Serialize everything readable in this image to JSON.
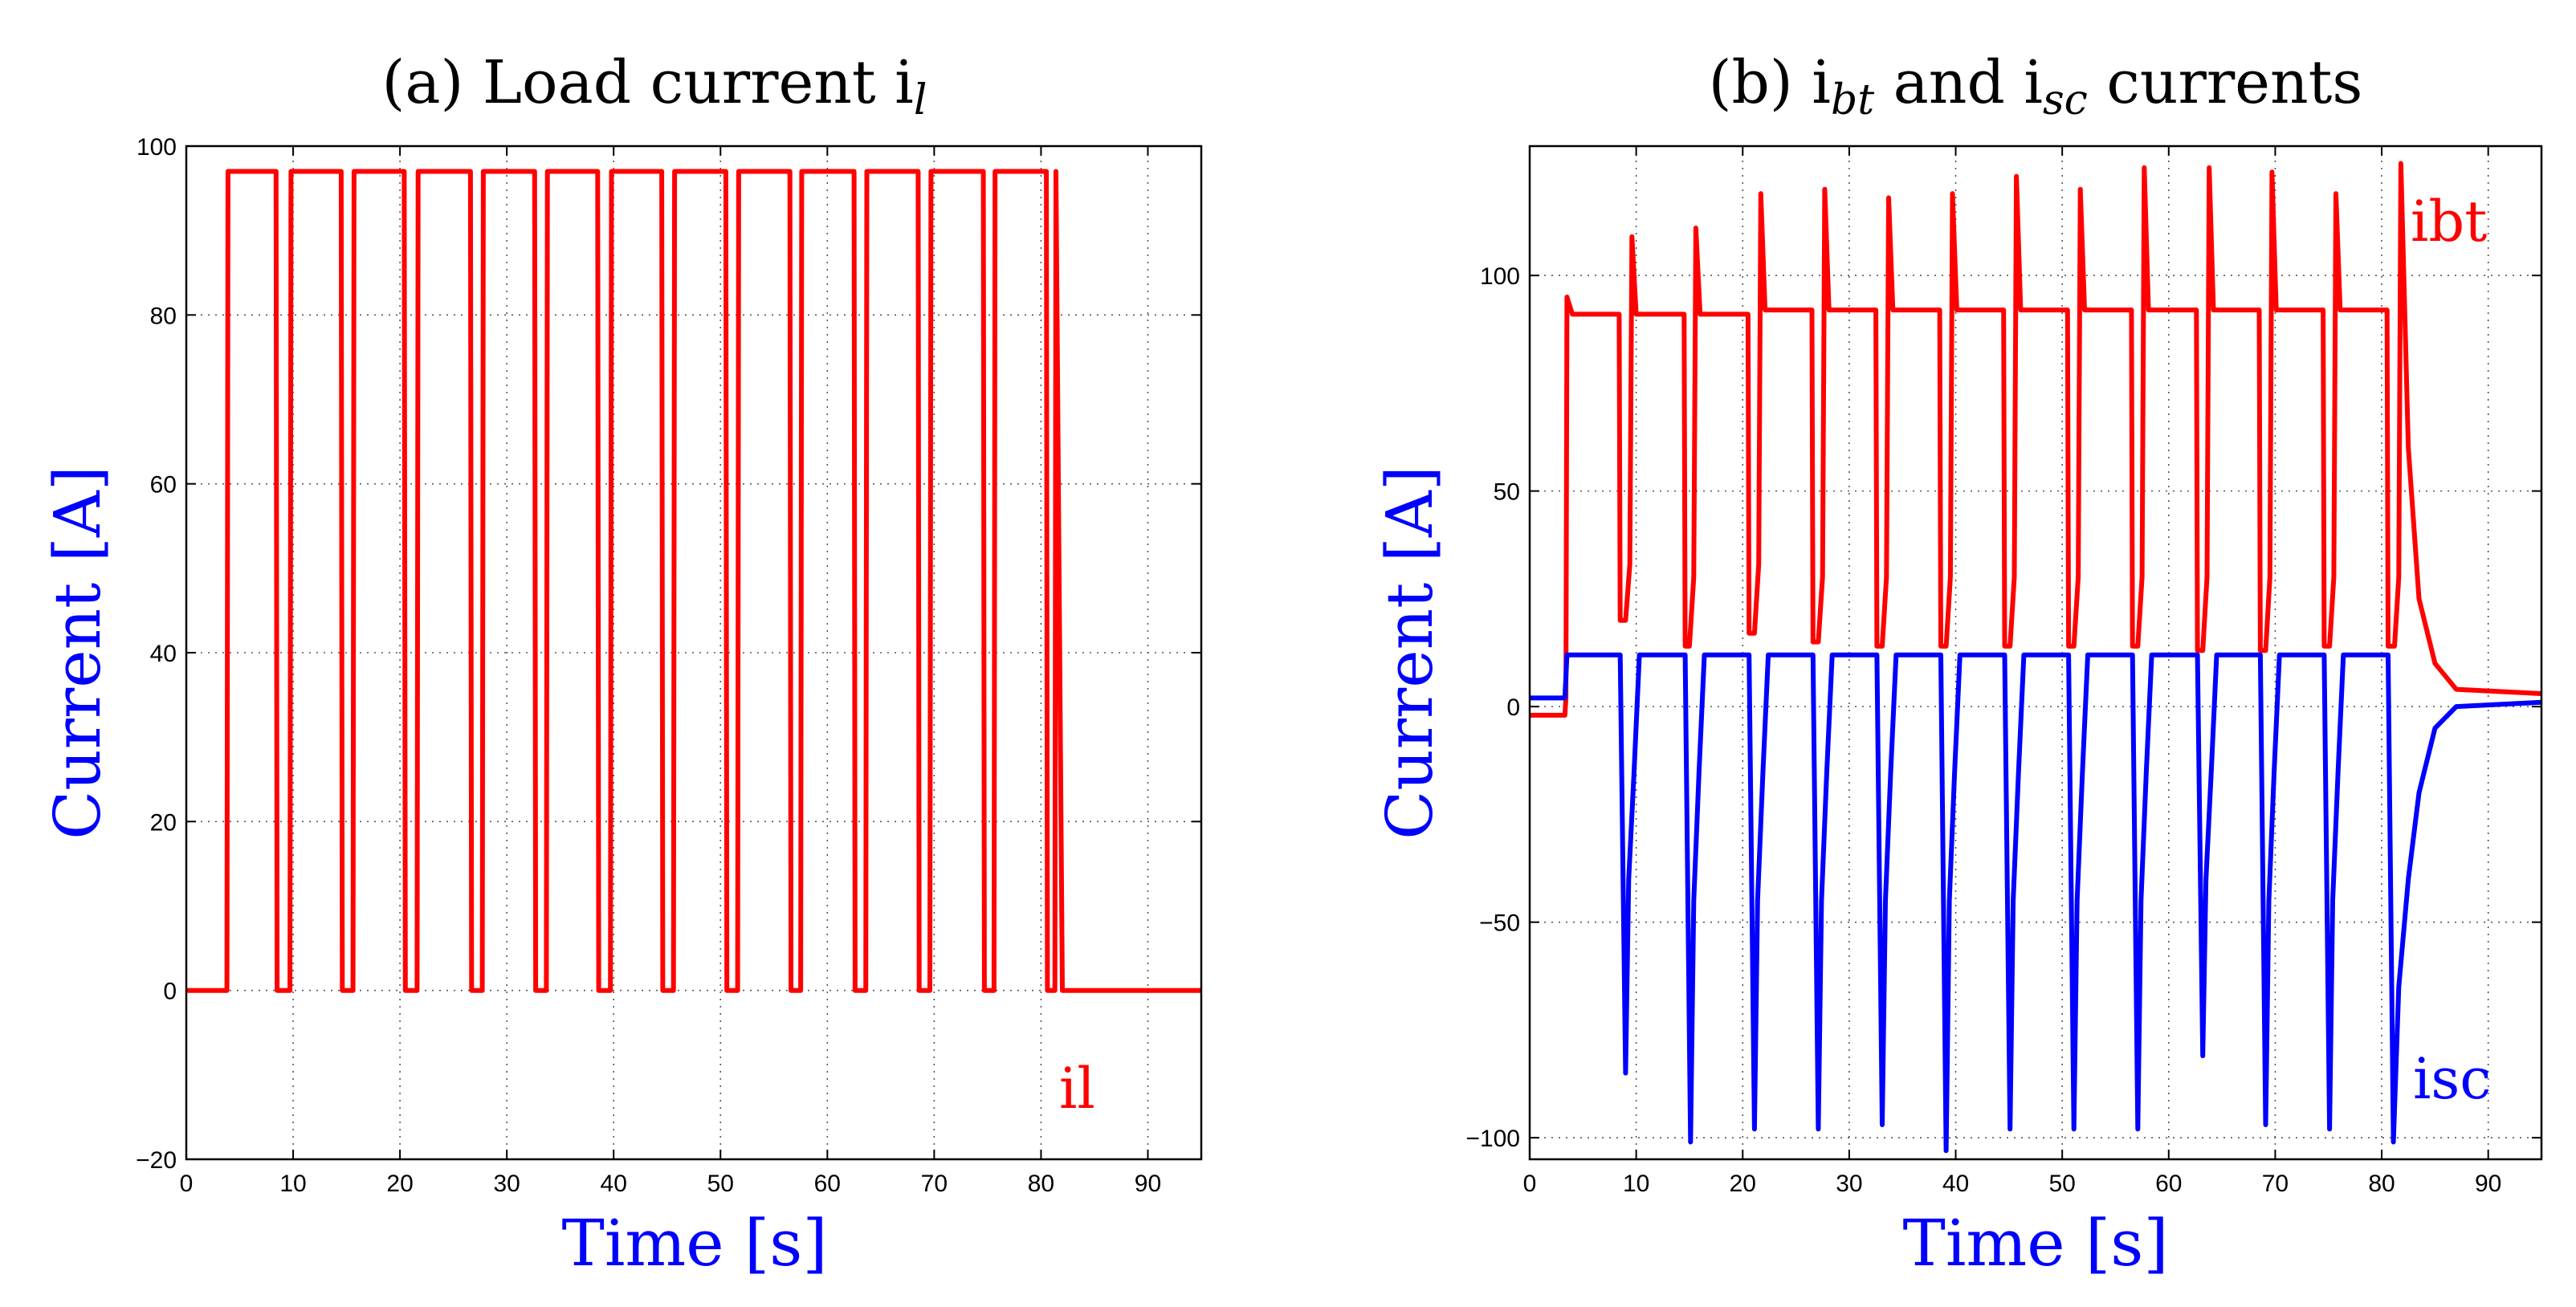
{
  "chart_data": [
    {
      "type": "line",
      "title": "(a) Load current i",
      "title_subscript": "l",
      "xlabel": "Time [s]",
      "ylabel": "Current [A]",
      "xlim": [
        0,
        95
      ],
      "ylim": [
        -20,
        100
      ],
      "xticks": [
        0,
        10,
        20,
        30,
        40,
        50,
        60,
        70,
        80,
        90
      ],
      "yticks": [
        -20,
        0,
        20,
        40,
        60,
        80,
        100
      ],
      "grid": true,
      "colors": {
        "il": "#ff0000",
        "label": "#0000ff"
      },
      "series": [
        {
          "name": "il",
          "color": "#ff0000",
          "x": [
            0,
            3.8,
            3.9,
            8.4,
            8.5,
            9.7,
            9.8,
            14.5,
            14.6,
            15.6,
            15.7,
            20.4,
            20.5,
            21.6,
            21.7,
            26.6,
            26.7,
            27.7,
            27.8,
            32.6,
            32.7,
            33.7,
            33.8,
            38.5,
            38.6,
            39.7,
            39.8,
            44.5,
            44.6,
            45.6,
            45.7,
            50.5,
            50.6,
            51.6,
            51.7,
            56.5,
            56.6,
            57.5,
            57.6,
            62.5,
            62.6,
            63.6,
            63.7,
            68.5,
            68.6,
            69.6,
            69.7,
            74.6,
            74.7,
            75.6,
            75.7,
            80.5,
            80.6,
            81.3,
            81.4,
            82.0,
            95
          ],
          "y": [
            0,
            0,
            97,
            97,
            0,
            0,
            97,
            97,
            0,
            0,
            97,
            97,
            0,
            0,
            97,
            97,
            0,
            0,
            97,
            97,
            0,
            0,
            97,
            97,
            0,
            0,
            97,
            97,
            0,
            0,
            97,
            97,
            0,
            0,
            97,
            97,
            0,
            0,
            97,
            97,
            0,
            0,
            97,
            97,
            0,
            0,
            97,
            97,
            0,
            0,
            97,
            97,
            0,
            0,
            97,
            0,
            0
          ]
        }
      ],
      "annotations": [
        {
          "text": "il",
          "x": 86,
          "y": -12,
          "color": "#ff0000"
        }
      ]
    },
    {
      "type": "line",
      "title": "(b) i",
      "title_sub1": "bt",
      "title_mid": " and i",
      "title_sub2": "sc",
      "title_tail": " currents",
      "xlabel": "Time [s]",
      "ylabel": "Current [A]",
      "xlim": [
        0,
        95
      ],
      "ylim": [
        -105,
        130
      ],
      "xticks": [
        0,
        10,
        20,
        30,
        40,
        50,
        60,
        70,
        80,
        90
      ],
      "yticks": [
        -100,
        -50,
        0,
        50,
        100
      ],
      "grid": true,
      "colors": {
        "ibt": "#ff0000",
        "isc": "#0000ff",
        "label": "#0000ff"
      },
      "series": [
        {
          "name": "ibt",
          "color": "#ff0000",
          "x": [
            0,
            3.3,
            3.4,
            3.5,
            4.0,
            8.4,
            8.5,
            9.0,
            9.4,
            9.6,
            10.0,
            14.5,
            14.6,
            15.0,
            15.4,
            15.6,
            16.0,
            20.5,
            20.6,
            21.1,
            21.5,
            21.7,
            22.1,
            26.5,
            26.6,
            27.1,
            27.5,
            27.7,
            28.1,
            32.5,
            32.6,
            33.1,
            33.5,
            33.7,
            34.1,
            38.5,
            38.6,
            39.1,
            39.5,
            39.7,
            40.1,
            44.5,
            44.6,
            45.1,
            45.5,
            45.7,
            46.1,
            50.5,
            50.6,
            51.1,
            51.5,
            51.7,
            52.1,
            56.5,
            56.6,
            57.1,
            57.5,
            57.7,
            58.1,
            62.6,
            62.7,
            63.2,
            63.6,
            63.8,
            64.2,
            68.5,
            68.6,
            69.1,
            69.5,
            69.7,
            70.1,
            74.5,
            74.6,
            75.1,
            75.5,
            75.7,
            76.1,
            80.5,
            80.6,
            81.2,
            81.6,
            81.8,
            82.5,
            83.5,
            85,
            87,
            95
          ],
          "y": [
            -2,
            -2,
            2,
            95,
            91,
            91,
            20,
            20,
            33,
            109,
            91,
            91,
            14,
            14,
            30,
            111,
            91,
            91,
            17,
            17,
            33,
            119,
            92,
            92,
            15,
            15,
            30,
            120,
            92,
            92,
            14,
            14,
            30,
            118,
            92,
            92,
            14,
            14,
            30,
            119,
            92,
            92,
            14,
            14,
            30,
            123,
            92,
            92,
            14,
            14,
            30,
            120,
            92,
            92,
            14,
            14,
            30,
            125,
            92,
            92,
            13,
            13,
            30,
            125,
            92,
            92,
            13,
            13,
            30,
            124,
            92,
            92,
            14,
            14,
            30,
            119,
            92,
            92,
            14,
            14,
            30,
            126,
            60,
            25,
            10,
            4,
            3
          ]
        },
        {
          "name": "isc",
          "color": "#0000ff",
          "x": [
            0,
            3.3,
            3.5,
            8.4,
            8.5,
            9.0,
            9.3,
            9.8,
            10.3,
            14.5,
            14.6,
            15.1,
            15.4,
            15.9,
            16.4,
            20.5,
            20.6,
            21.1,
            21.4,
            21.9,
            22.4,
            26.5,
            26.6,
            27.1,
            27.4,
            27.9,
            28.4,
            32.5,
            32.6,
            33.1,
            33.4,
            33.9,
            34.4,
            38.5,
            38.6,
            39.1,
            39.4,
            39.9,
            40.4,
            44.5,
            44.6,
            45.1,
            45.4,
            45.9,
            46.4,
            50.5,
            50.6,
            51.1,
            51.4,
            51.9,
            52.4,
            56.5,
            56.6,
            57.1,
            57.4,
            57.9,
            58.4,
            62.6,
            62.7,
            63.2,
            63.5,
            64.0,
            64.5,
            68.5,
            68.6,
            69.1,
            69.4,
            69.9,
            70.4,
            74.5,
            74.6,
            75.1,
            75.4,
            75.9,
            76.4,
            80.5,
            80.6,
            81.1,
            81.6,
            82.5,
            83.5,
            85,
            87,
            95
          ],
          "y": [
            2,
            2,
            12,
            12,
            12,
            -85,
            -40,
            -15,
            12,
            12,
            12,
            -101,
            -45,
            -15,
            12,
            12,
            12,
            -98,
            -45,
            -15,
            12,
            12,
            12,
            -98,
            -45,
            -15,
            12,
            12,
            12,
            -97,
            -45,
            -15,
            12,
            12,
            12,
            -103,
            -45,
            -15,
            12,
            12,
            12,
            -98,
            -45,
            -15,
            12,
            12,
            12,
            -98,
            -45,
            -15,
            12,
            12,
            12,
            -98,
            -45,
            -15,
            12,
            12,
            12,
            -81,
            -40,
            -15,
            12,
            12,
            12,
            -97,
            -45,
            -15,
            12,
            12,
            12,
            -98,
            -45,
            -15,
            12,
            12,
            12,
            -101,
            -65,
            -40,
            -20,
            -5,
            0,
            1
          ]
        }
      ],
      "annotations": [
        {
          "text": "ibt",
          "x": 88,
          "y": 111,
          "color": "#ff0000"
        },
        {
          "text": "isc",
          "x": 88,
          "y": -92,
          "color": "#0000ff"
        }
      ]
    }
  ]
}
